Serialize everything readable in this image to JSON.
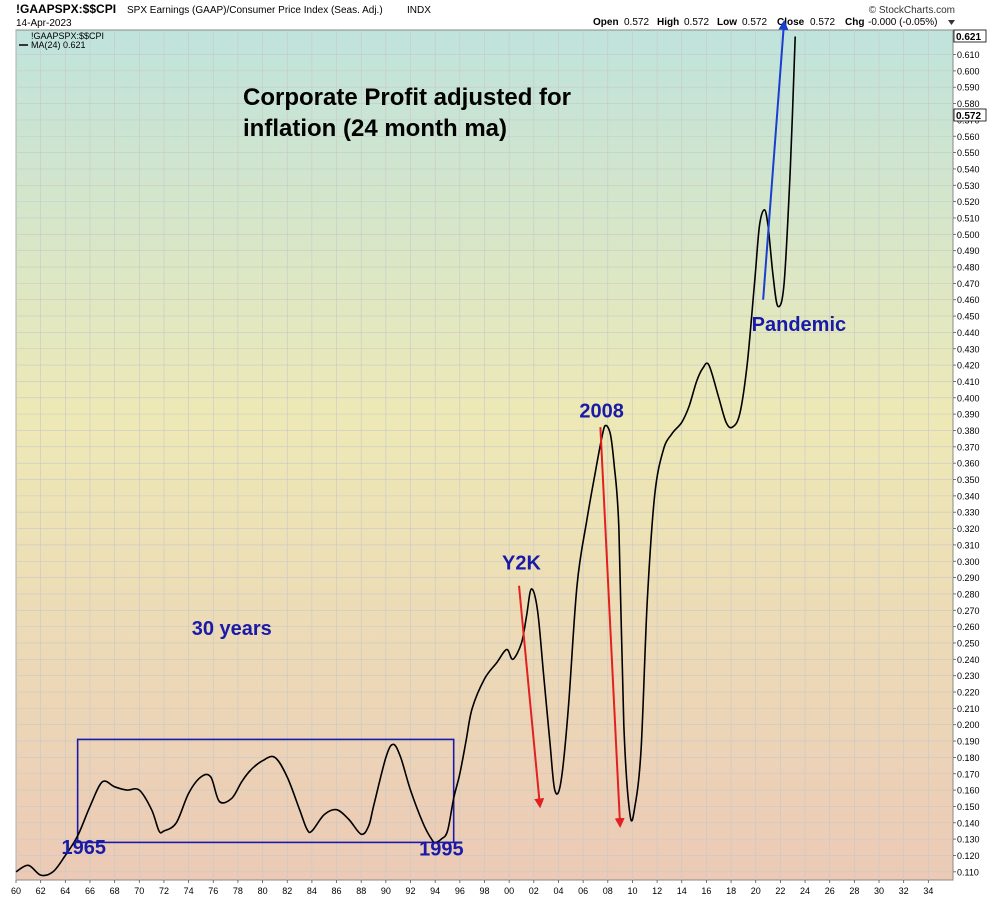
{
  "header": {
    "symbol": "!GAAPSPX:$$CPI",
    "description": "SPX Earnings (GAAP)/Consumer Price Index (Seas. Adj.)",
    "exchange": "INDX",
    "date": "14-Apr-2023",
    "watermark": "© StockCharts.com",
    "ohlc": {
      "open_label": "Open",
      "open": "0.572",
      "high_label": "High",
      "high": "0.572",
      "low_label": "Low",
      "low": "0.572",
      "close_label": "Close",
      "close": "0.572",
      "chg_label": "Chg",
      "chg": "-0.000 (-0.05%)"
    }
  },
  "legend": {
    "series_label": "!GAAPSPX:$$CPI",
    "ma_label": "MA(24) 0.621"
  },
  "price_badges": {
    "ma_value": "0.621",
    "last_value": "0.572"
  },
  "colors": {
    "line": "#000000",
    "annotation_blue": "#1a1aa8",
    "arrow_red": "#e32020",
    "arrow_blue": "#1a3fcf",
    "box": "#1a1aa8",
    "bg_top": "#bfe3dc",
    "bg_mid": "#ede9b6",
    "bg_bottom": "#eccab6",
    "grid": "#c8c8c8"
  },
  "chart_data": {
    "type": "line",
    "title": "Corporate Profit adjusted for inflation (24 month ma)",
    "title_lines": [
      "Corporate Profit adjusted for",
      "inflation (24 month ma)"
    ],
    "xlabel": "",
    "ylabel": "",
    "xlim": [
      1960,
      2036
    ],
    "ylim": [
      0.105,
      0.625
    ],
    "y_ticks": [
      "0.110",
      "0.120",
      "0.130",
      "0.140",
      "0.150",
      "0.160",
      "0.170",
      "0.180",
      "0.190",
      "0.200",
      "0.210",
      "0.220",
      "0.230",
      "0.240",
      "0.250",
      "0.260",
      "0.270",
      "0.280",
      "0.290",
      "0.300",
      "0.310",
      "0.320",
      "0.330",
      "0.340",
      "0.350",
      "0.360",
      "0.370",
      "0.380",
      "0.390",
      "0.400",
      "0.410",
      "0.420",
      "0.430",
      "0.440",
      "0.450",
      "0.460",
      "0.470",
      "0.480",
      "0.490",
      "0.500",
      "0.510",
      "0.520",
      "0.530",
      "0.540",
      "0.550",
      "0.560",
      "0.570",
      "0.580",
      "0.590",
      "0.600",
      "0.610"
    ],
    "x_ticks": [
      "60",
      "62",
      "64",
      "66",
      "68",
      "70",
      "72",
      "74",
      "76",
      "78",
      "80",
      "82",
      "84",
      "86",
      "88",
      "90",
      "92",
      "94",
      "96",
      "98",
      "00",
      "02",
      "04",
      "06",
      "08",
      "10",
      "12",
      "14",
      "16",
      "18",
      "20",
      "22",
      "24",
      "26",
      "28",
      "30",
      "32",
      "34"
    ],
    "grid": true,
    "series": [
      {
        "x": [
          1960,
          1961,
          1962,
          1963,
          1964,
          1965,
          1966,
          1967,
          1968,
          1969,
          1970,
          1971,
          1971.6,
          1972,
          1973,
          1974,
          1975,
          1975.8,
          1976.5,
          1977.5,
          1978.3,
          1979,
          1980,
          1981,
          1982,
          1983,
          1983.6,
          1984,
          1985,
          1986,
          1987,
          1988,
          1988.6,
          1989,
          1990,
          1990.6,
          1991.2,
          1992,
          1993,
          1993.7,
          1994,
          1994.5,
          1995,
          1995.5,
          1996,
          1996.5,
          1997,
          1998,
          1999,
          1999.8,
          2000.3,
          2001,
          2001.4,
          2001.8,
          2002.3,
          2002.8,
          2003.3,
          2003.7,
          2004.2,
          2004.8,
          2005.5,
          2006.3,
          2007,
          2007.5,
          2007.8,
          2008.2,
          2008.5,
          2008.9,
          2009.3,
          2009.8,
          2010.2,
          2010.7,
          2011.2,
          2011.8,
          2012.5,
          2013.2,
          2014,
          2014.6,
          2015.2,
          2015.7,
          2016.2,
          2017,
          2017.6,
          2018.1,
          2018.7,
          2019.3,
          2019.9,
          2020.3,
          2020.7,
          2021,
          2021.4,
          2021.8,
          2022.3,
          2022.8,
          2023.2
        ],
        "y": [
          0.11,
          0.114,
          0.108,
          0.11,
          0.12,
          0.132,
          0.15,
          0.165,
          0.162,
          0.16,
          0.16,
          0.148,
          0.135,
          0.135,
          0.14,
          0.158,
          0.168,
          0.168,
          0.153,
          0.155,
          0.165,
          0.172,
          0.178,
          0.18,
          0.168,
          0.148,
          0.136,
          0.135,
          0.145,
          0.148,
          0.142,
          0.133,
          0.138,
          0.15,
          0.18,
          0.188,
          0.18,
          0.16,
          0.14,
          0.13,
          0.128,
          0.13,
          0.135,
          0.155,
          0.17,
          0.19,
          0.21,
          0.228,
          0.238,
          0.246,
          0.24,
          0.25,
          0.266,
          0.283,
          0.27,
          0.23,
          0.19,
          0.16,
          0.165,
          0.21,
          0.285,
          0.325,
          0.355,
          0.375,
          0.383,
          0.378,
          0.36,
          0.32,
          0.2,
          0.145,
          0.15,
          0.185,
          0.275,
          0.34,
          0.368,
          0.378,
          0.385,
          0.395,
          0.41,
          0.418,
          0.42,
          0.4,
          0.385,
          0.382,
          0.39,
          0.42,
          0.47,
          0.505,
          0.515,
          0.505,
          0.475,
          0.456,
          0.47,
          0.54,
          0.621
        ]
      }
    ],
    "annotations": [
      {
        "text": "Y2K",
        "x": 2001.0,
        "y": 0.295
      },
      {
        "text": "2008",
        "x": 2007.5,
        "y": 0.388
      },
      {
        "text": "Pandemic",
        "x": 2023.5,
        "y": 0.441
      },
      {
        "text": "30 years",
        "x": 1977.5,
        "y": 0.255
      },
      {
        "text": "1965",
        "x": 1965.5,
        "y": 0.121
      },
      {
        "text": "1995",
        "x": 1994.5,
        "y": 0.12
      }
    ],
    "arrows": [
      {
        "color": "red",
        "from": [
          2000.8,
          0.285
        ],
        "to": [
          2002.5,
          0.15
        ]
      },
      {
        "color": "red",
        "from": [
          2007.4,
          0.382
        ],
        "to": [
          2009.0,
          0.138
        ]
      },
      {
        "color": "blue",
        "from": [
          2020.6,
          0.46
        ],
        "to": [
          2022.3,
          0.63
        ]
      }
    ],
    "box": {
      "x0": 1965,
      "x1": 1995.5,
      "y0": 0.128,
      "y1": 0.191
    }
  }
}
